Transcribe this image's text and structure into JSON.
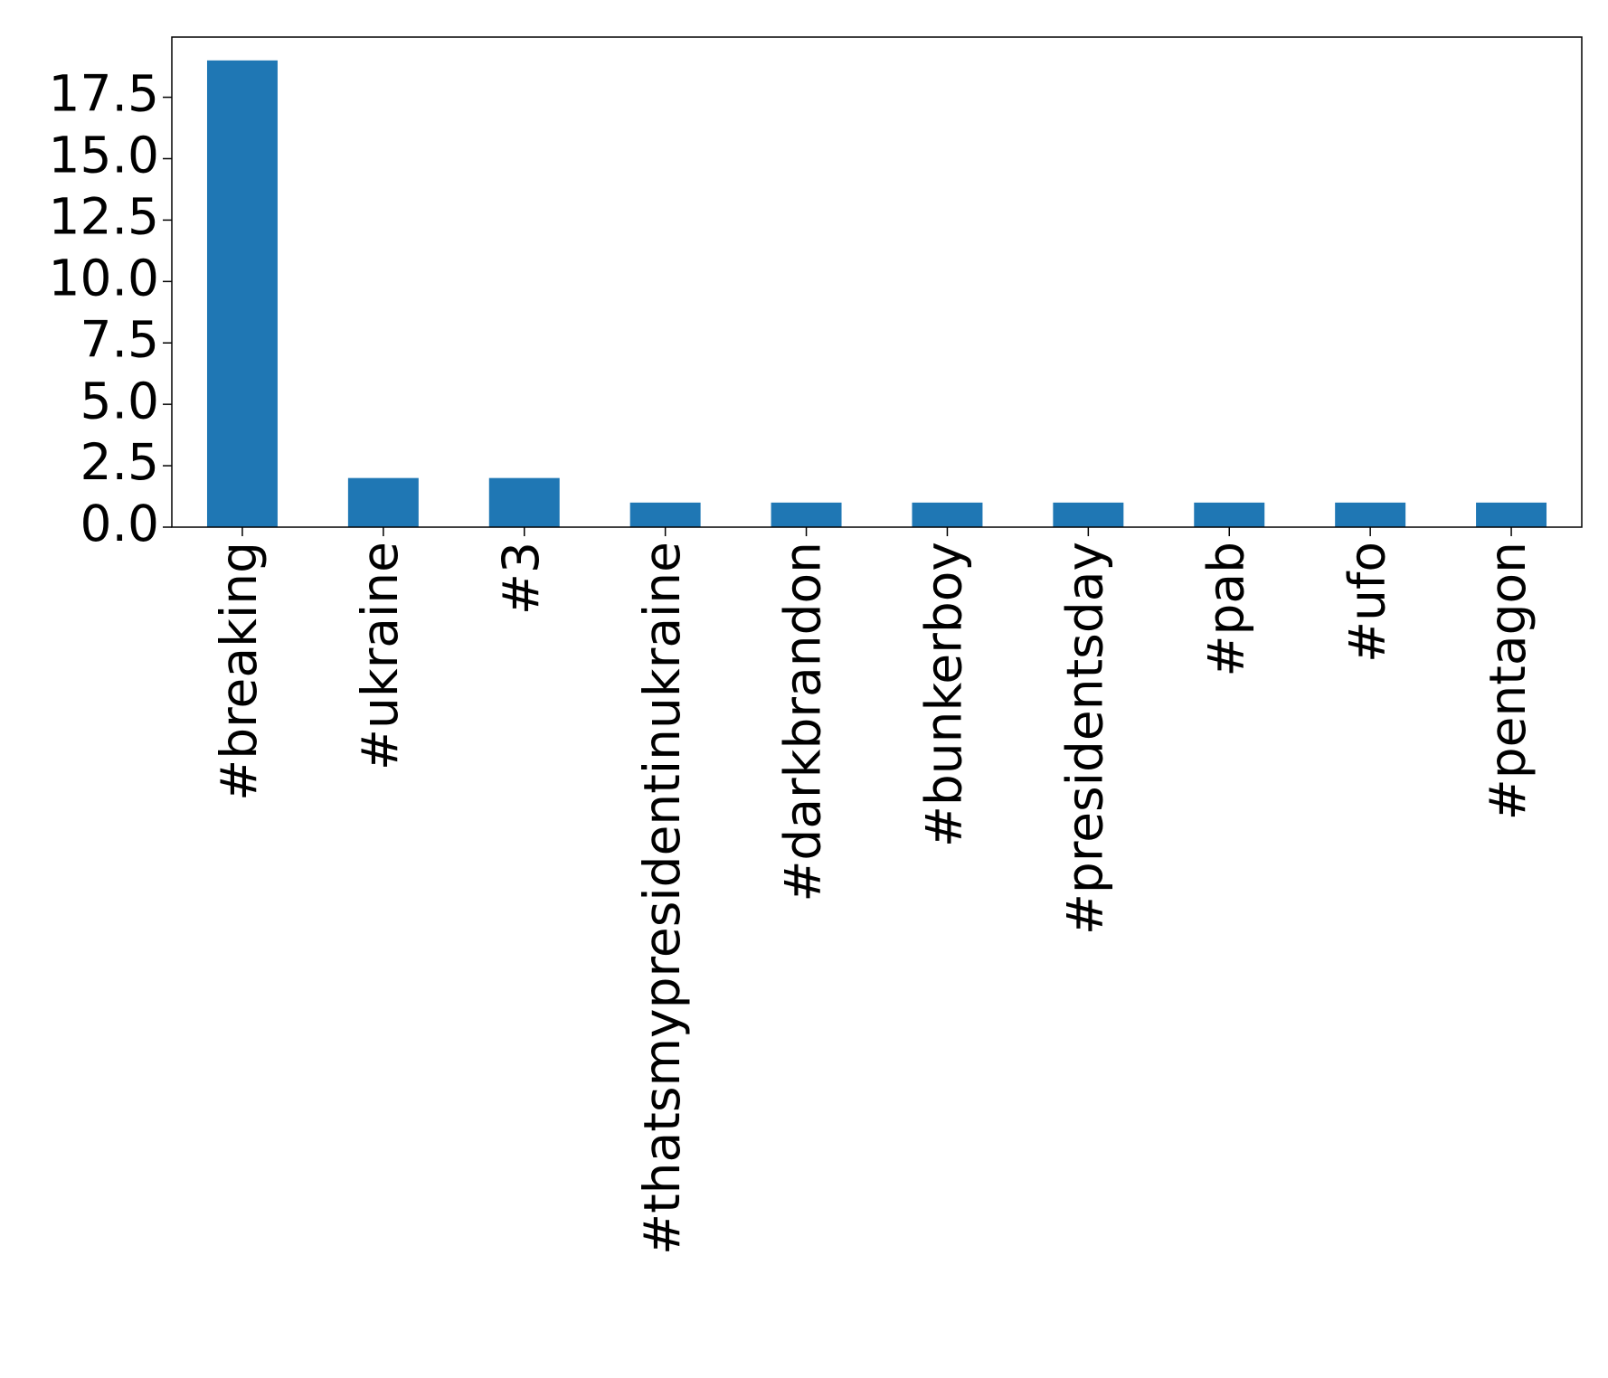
{
  "chart_data": {
    "type": "bar",
    "categories": [
      "#breaking",
      "#ukraine",
      "#3",
      "#thatsmypresidentinukraine",
      "#darkbrandon",
      "#bunkerboy",
      "#presidentsday",
      "#pab",
      "#ufo",
      "#pentagon"
    ],
    "values": [
      19,
      2,
      2,
      1,
      1,
      1,
      1,
      1,
      1,
      1
    ],
    "color": "#1f77b4",
    "ylim": [
      0,
      19.95
    ],
    "yticks": [
      {
        "value": 0,
        "label": "0.0"
      },
      {
        "value": 2.5,
        "label": "2.5"
      },
      {
        "value": 5,
        "label": "5.0"
      },
      {
        "value": 7.5,
        "label": "7.5"
      },
      {
        "value": 10,
        "label": "10.0"
      },
      {
        "value": 12.5,
        "label": "12.5"
      },
      {
        "value": 15,
        "label": "15.0"
      },
      {
        "value": 17.5,
        "label": "17.5"
      }
    ],
    "grid": false
  }
}
